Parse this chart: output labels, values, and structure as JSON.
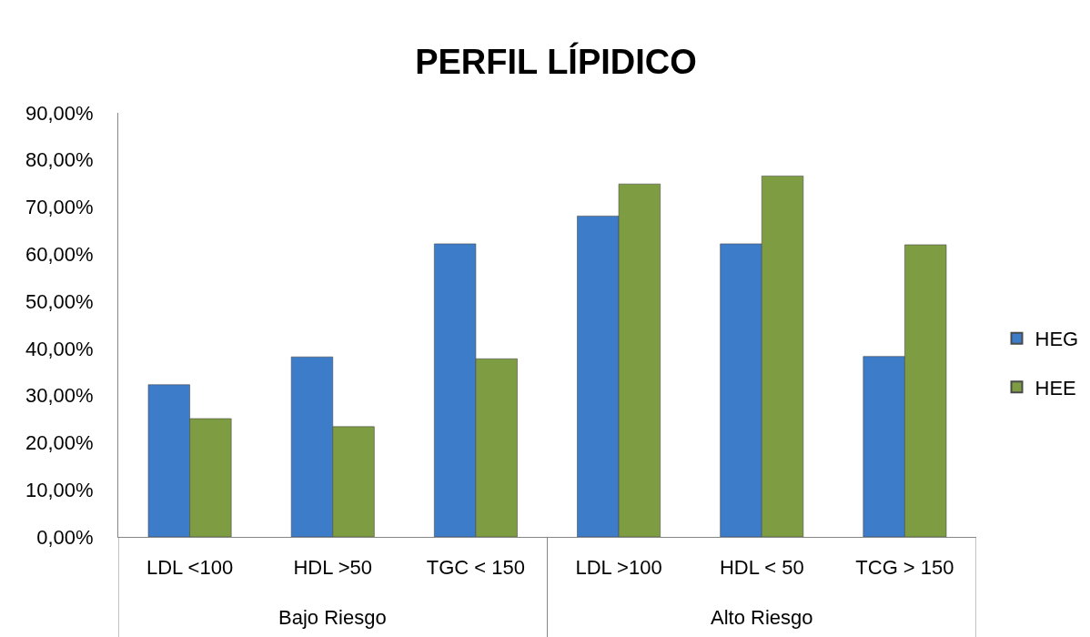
{
  "chart_data": {
    "type": "bar",
    "title": "PERFIL LÍPIDICO",
    "categories": [
      "LDL <100",
      "HDL >50",
      "TGC < 150",
      "LDL >100",
      "HDL < 50",
      "TCG > 150"
    ],
    "annotations": [
      "Bajo Riesgo",
      "Alto Riesgo"
    ],
    "series": [
      {
        "name": "HEG",
        "color": "#3d7cc9",
        "values": [
          32.3,
          38.2,
          62.2,
          68.1,
          62.2,
          38.3
        ]
      },
      {
        "name": "HEE",
        "color": "#7e9c41",
        "values": [
          25.1,
          23.4,
          37.8,
          74.9,
          76.6,
          62.0
        ]
      }
    ],
    "ylim": [
      0,
      90
    ],
    "yticks": [
      {
        "value": 0,
        "label": "0,00%"
      },
      {
        "value": 10,
        "label": "10,00%"
      },
      {
        "value": 20,
        "label": "20,00%"
      },
      {
        "value": 30,
        "label": "30,00%"
      },
      {
        "value": 40,
        "label": "40,00%"
      },
      {
        "value": 50,
        "label": "50,00%"
      },
      {
        "value": 60,
        "label": "60,00%"
      },
      {
        "value": 70,
        "label": "70,00%"
      },
      {
        "value": 80,
        "label": "80,00%"
      },
      {
        "value": 90,
        "label": "90,00%"
      }
    ],
    "legend": "right"
  }
}
